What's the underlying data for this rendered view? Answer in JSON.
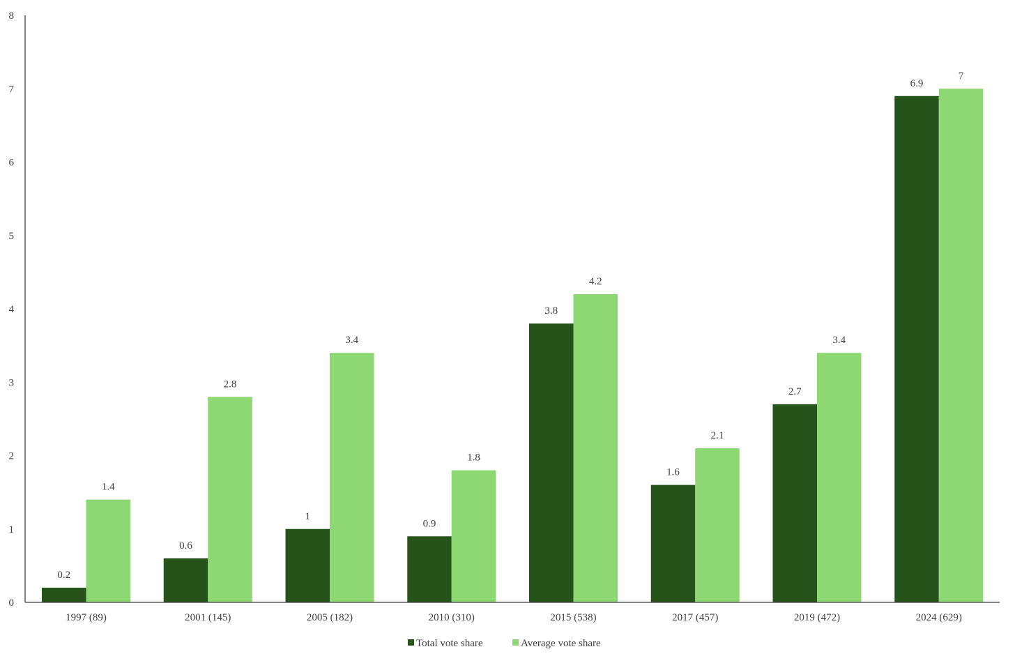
{
  "chart_data": {
    "type": "bar",
    "title": "",
    "xlabel": "",
    "ylabel": "",
    "ylim": [
      0,
      8
    ],
    "yticks": [
      0,
      1,
      2,
      3,
      4,
      5,
      6,
      7,
      8
    ],
    "categories": [
      "1997 (89)",
      "2001 (145)",
      "2005 (182)",
      "2010 (310)",
      "2015 (538)",
      "2017 (457)",
      "2019 (472)",
      "2024 (629)"
    ],
    "series": [
      {
        "name": "Total vote share",
        "color": "#265319",
        "values": [
          0.2,
          0.6,
          1,
          0.9,
          3.8,
          1.6,
          2.7,
          6.9
        ]
      },
      {
        "name": "Average vote share",
        "color": "#8dd873",
        "values": [
          1.4,
          2.8,
          3.4,
          1.8,
          4.2,
          2.1,
          3.4,
          7
        ]
      }
    ],
    "grid": false,
    "legend": "bottom"
  }
}
